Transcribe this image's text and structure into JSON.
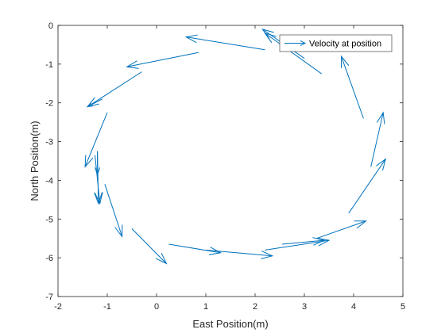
{
  "chart_data": {
    "type": "quiver",
    "title": "",
    "xlabel": "East Position(m)",
    "ylabel": "North Position(m)",
    "xlim": [
      -2,
      5
    ],
    "ylim": [
      -7,
      0
    ],
    "xticks": [
      "-2",
      "-1",
      "0",
      "1",
      "2",
      "3",
      "4",
      "5"
    ],
    "yticks": [
      "0",
      "-1",
      "-2",
      "-3",
      "-4",
      "-5",
      "-6",
      "-7"
    ],
    "grid": false,
    "legend_position": "top-right",
    "color": "#0072BD",
    "series": [
      {
        "name": "Velocity at position",
        "vectors": [
          {
            "x": 2.2,
            "y": -0.63,
            "u": -1.6,
            "v": 0.33
          },
          {
            "x": 0.85,
            "y": -0.7,
            "u": -1.45,
            "v": -0.37
          },
          {
            "x": -0.3,
            "y": -1.2,
            "u": -1.1,
            "v": -0.9
          },
          {
            "x": -1.1,
            "y": -1.9,
            "u": -0.3,
            "v": -0.2
          },
          {
            "x": -1.0,
            "y": -2.25,
            "u": -0.45,
            "v": -1.4
          },
          {
            "x": -1.2,
            "y": -3.25,
            "u": 0.0,
            "v": -0.6
          },
          {
            "x": -1.2,
            "y": -3.25,
            "u": 0.02,
            "v": -1.35
          },
          {
            "x": -1.25,
            "y": -3.35,
            "u": 0.1,
            "v": -1.25
          },
          {
            "x": -1.05,
            "y": -4.1,
            "u": 0.35,
            "v": -1.35
          },
          {
            "x": -0.5,
            "y": -5.25,
            "u": 0.7,
            "v": -0.9
          },
          {
            "x": 0.25,
            "y": -5.65,
            "u": 1.05,
            "v": -0.22
          },
          {
            "x": 1.0,
            "y": -5.8,
            "u": 1.35,
            "v": -0.15
          },
          {
            "x": 2.2,
            "y": -5.8,
            "u": 1.3,
            "v": 0.25
          },
          {
            "x": 2.55,
            "y": -5.65,
            "u": 0.85,
            "v": 0.1
          },
          {
            "x": 3.25,
            "y": -5.5,
            "u": 1.0,
            "v": 0.45
          },
          {
            "x": 3.9,
            "y": -4.85,
            "u": 0.75,
            "v": 1.4
          },
          {
            "x": 4.35,
            "y": -3.65,
            "u": 0.25,
            "v": 1.4
          },
          {
            "x": 4.2,
            "y": -2.4,
            "u": -0.45,
            "v": 1.6
          },
          {
            "x": 3.35,
            "y": -1.25,
            "u": -1.15,
            "v": 1.05
          },
          {
            "x": 3.0,
            "y": -0.85,
            "u": -0.85,
            "v": 0.75
          }
        ]
      }
    ]
  }
}
